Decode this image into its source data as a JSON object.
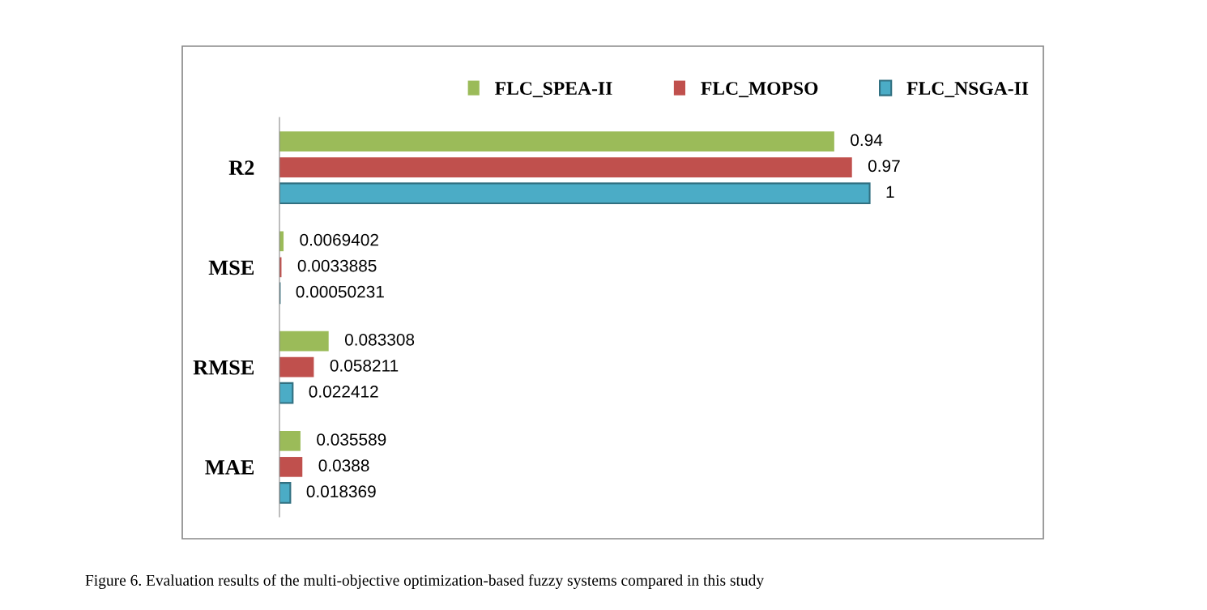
{
  "chart_data": {
    "type": "bar",
    "orientation": "horizontal",
    "categories": [
      "R2",
      "MSE",
      "RMSE",
      "MAE"
    ],
    "series": [
      {
        "name": "FLC_SPEA-II",
        "color": "#9bbb59",
        "values": [
          0.94,
          0.0069402,
          0.083308,
          0.035589
        ]
      },
      {
        "name": "FLC_MOPSO",
        "color": "#c0504d",
        "values": [
          0.97,
          0.0033885,
          0.058211,
          0.0388
        ]
      },
      {
        "name": "FLC_NSGA-II",
        "color": "#4bacc6",
        "values": [
          1,
          0.00050231,
          0.022412,
          0.018369
        ]
      }
    ],
    "data_labels": true,
    "legend": "top",
    "grid": false,
    "annotations": [
      "Figure 6. Evaluation results of the multi-objective optimization-based fuzzy systems compared in this study"
    ]
  }
}
